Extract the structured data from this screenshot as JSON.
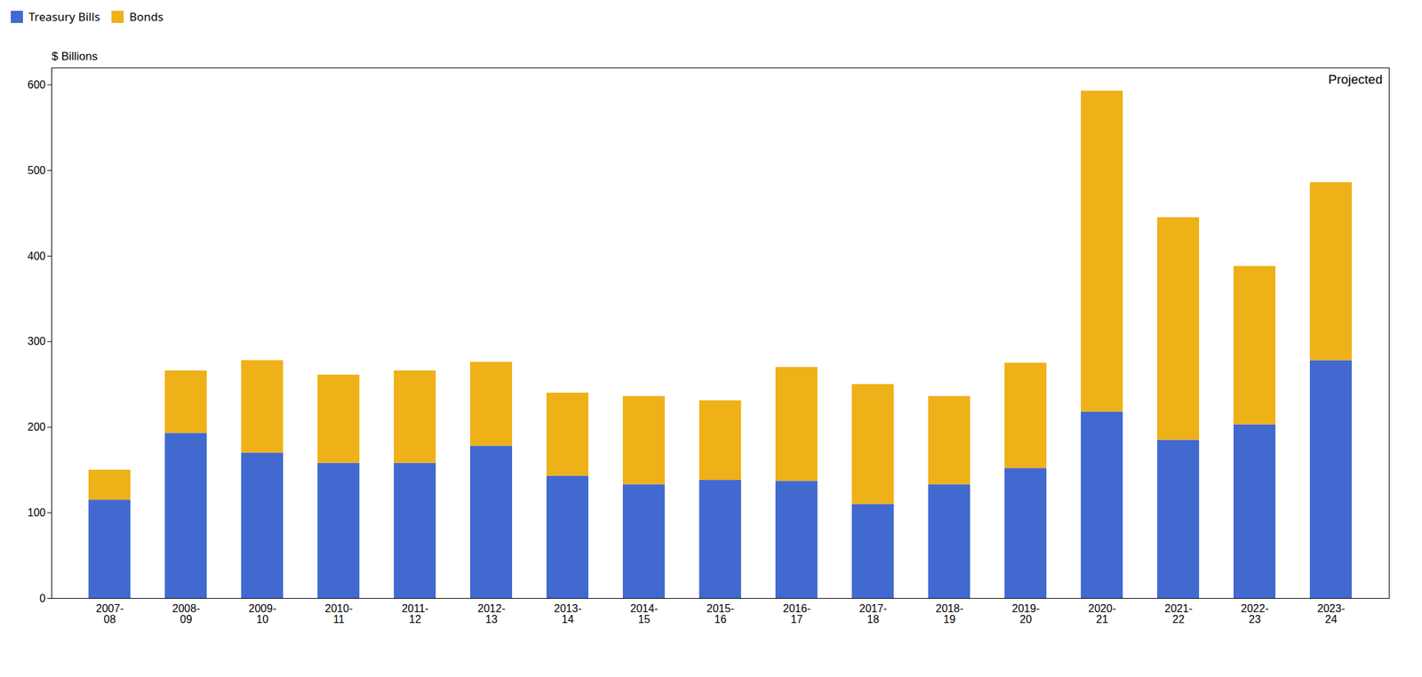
{
  "chart_data": {
    "type": "bar",
    "ylabel": "$ Billions",
    "annotations": [
      "Projected"
    ],
    "categories": [
      "2007-\n08",
      "2008-\n09",
      "2009-\n10",
      "2010-\n11",
      "2011-\n12",
      "2012-\n13",
      "2013-\n14",
      "2014-\n15",
      "2015-\n16",
      "2016-\n17",
      "2017-\n18",
      "2018-\n19",
      "2019-\n20",
      "2020-\n21",
      "2021-\n22",
      "2022-\n23",
      "2023-\n24"
    ],
    "series": [
      {
        "name": "Treasury Bills",
        "values": [
          115,
          193,
          170,
          158,
          158,
          178,
          143,
          133,
          138,
          137,
          110,
          133,
          152,
          218,
          185,
          203,
          278
        ]
      },
      {
        "name": "Bonds",
        "values": [
          35,
          73,
          108,
          103,
          108,
          98,
          97,
          103,
          93,
          133,
          140,
          103,
          123,
          375,
          260,
          185,
          208
        ]
      }
    ],
    "stacked": true,
    "ylim": [
      0,
      620
    ],
    "yticks": [
      0,
      100,
      200,
      300,
      400,
      500,
      600
    ],
    "grid": false,
    "legend": "top"
  }
}
